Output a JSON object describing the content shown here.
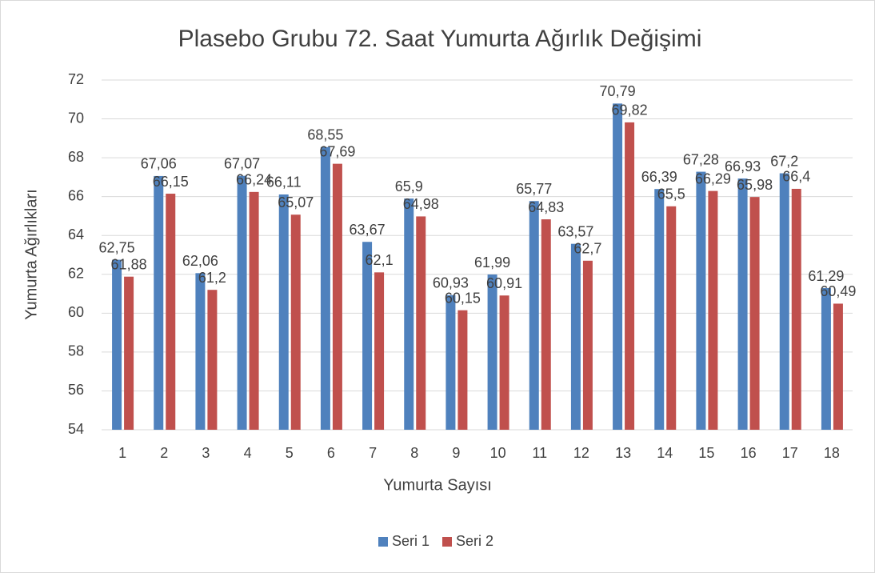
{
  "chart_data": {
    "type": "bar",
    "title": "Plasebo Grubu 72. Saat Yumurta Ağırlık Değişimi",
    "x_label": "Yumurta Sayısı",
    "y_label": "Yumurta Ağırlıkları",
    "categories": [
      "1",
      "2",
      "3",
      "4",
      "5",
      "6",
      "7",
      "8",
      "9",
      "10",
      "11",
      "12",
      "13",
      "14",
      "15",
      "16",
      "17",
      "18"
    ],
    "series": [
      {
        "name": "Seri 1",
        "color": "#4f81bd",
        "values": [
          62.75,
          67.06,
          62.06,
          67.07,
          66.11,
          68.55,
          63.67,
          65.9,
          60.93,
          61.99,
          65.77,
          63.57,
          70.79,
          66.39,
          67.28,
          66.93,
          67.2,
          61.29
        ],
        "value_labels": [
          "62,75",
          "67,06",
          "62,06",
          "67,07",
          "66,11",
          "68,55",
          "63,67",
          "65,9",
          "60,93",
          "61,99",
          "65,77",
          "63,57",
          "70,79",
          "66,39",
          "67,28",
          "66,93",
          "67,2",
          "61,29"
        ]
      },
      {
        "name": "Seri 2",
        "color": "#c0504d",
        "values": [
          61.88,
          66.15,
          61.2,
          66.24,
          65.07,
          67.69,
          62.1,
          64.98,
          60.15,
          60.91,
          64.83,
          62.7,
          69.82,
          65.5,
          66.29,
          65.98,
          66.4,
          60.49
        ],
        "value_labels": [
          "61,88",
          "66,15",
          "61,2",
          "66,24",
          "65,07",
          "67,69",
          "62,1",
          "64,98",
          "60,15",
          "60,91",
          "64,83",
          "62,7",
          "69,82",
          "65,5",
          "66,29",
          "65,98",
          "66,4",
          "60,49"
        ]
      }
    ],
    "ylim": [
      54,
      72
    ],
    "yticks": [
      54,
      56,
      58,
      60,
      62,
      64,
      66,
      68,
      70,
      72
    ],
    "grid": true,
    "legend": "bottom"
  }
}
